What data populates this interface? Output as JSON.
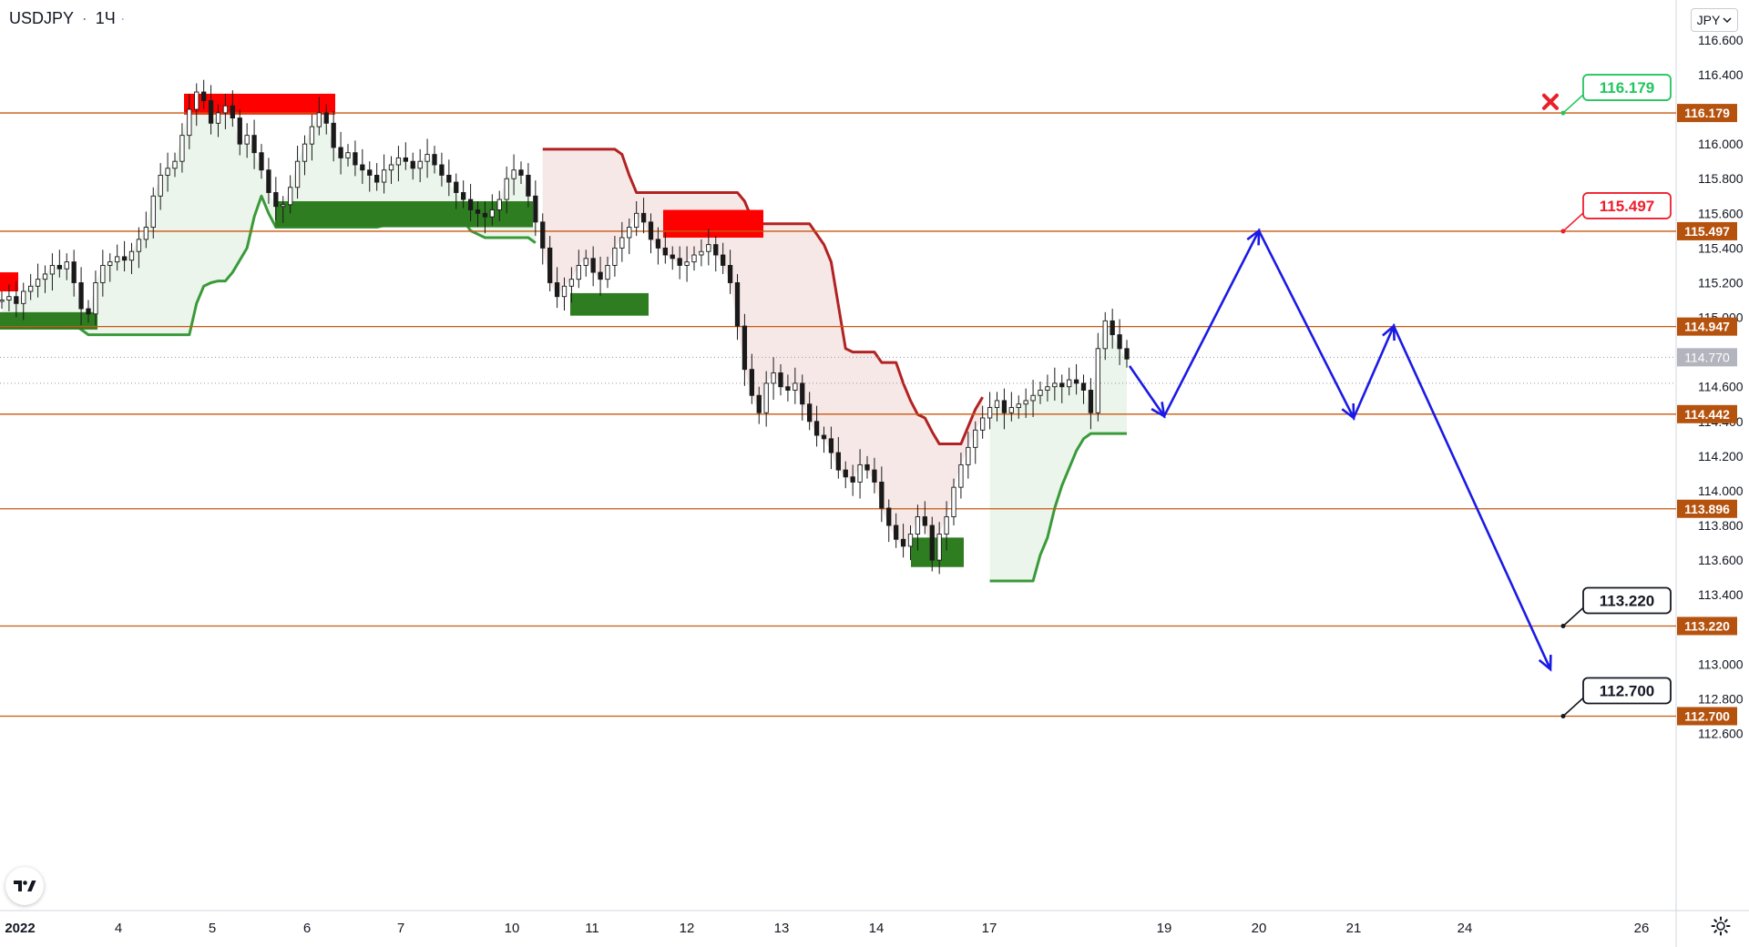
{
  "symbol": {
    "ticker": "USDJPY",
    "interval": "1Ч",
    "dot": "·"
  },
  "currency_button": {
    "label": "JPY",
    "icon": "chevron-down-icon"
  },
  "bottom_icons": {
    "logo": "tradingview-logo-icon",
    "settings": "gear-icon"
  },
  "colors": {
    "level_line": "#c8590f",
    "level_badge": "#b5520e",
    "supply_zone": "#ff0000",
    "demand_zone": "#2e7d20",
    "trail_up": "#3a9a3a",
    "trail_down": "#b22222",
    "forecast_path": "#1a1ae6",
    "stop_marker": "#e8202a",
    "candles": "#1a1a1a",
    "current_price_badge": "#b2b5be"
  },
  "chart_data": {
    "type": "candlestick",
    "instrument": "USDJPY",
    "timeframe": "1Ч",
    "x_ticks": [
      "2022",
      "4",
      "5",
      "6",
      "7",
      "10",
      "11",
      "12",
      "13",
      "14",
      "17",
      "19",
      "20",
      "21",
      "24",
      "26"
    ],
    "y_ticks": [
      "116.600",
      "116.400",
      "116.000",
      "115.800",
      "115.600",
      "115.400",
      "115.200",
      "115.000",
      "114.600",
      "114.400",
      "114.200",
      "114.000",
      "113.800",
      "113.600",
      "113.400",
      "113.000",
      "112.800",
      "112.600"
    ],
    "ylim": [
      112.45,
      116.6
    ],
    "price_levels": [
      116.179,
      115.497,
      114.947,
      114.442,
      113.896,
      113.22,
      112.7
    ],
    "current_price": "114.770",
    "callout_labels": [
      {
        "text": "116.179",
        "color": "green"
      },
      {
        "text": "115.497",
        "color": "red"
      },
      {
        "text": "113.220",
        "color": "black"
      },
      {
        "text": "112.700",
        "color": "black"
      }
    ],
    "forecast_path": [
      {
        "date": "18 late",
        "price": 114.72
      },
      {
        "date": "19",
        "price": 114.43
      },
      {
        "date": "20",
        "price": 115.5
      },
      {
        "date": "21",
        "price": 114.42
      },
      {
        "date": "21-22",
        "price": 114.95
      },
      {
        "date": "25",
        "price": 112.97
      }
    ],
    "stop_marker": {
      "date": "25",
      "price": 116.17
    },
    "supply_zones": [
      {
        "from": "3",
        "to": "3",
        "low": 115.15,
        "high": 115.26
      },
      {
        "from": "4",
        "to": "6",
        "low": 116.17,
        "high": 116.29
      },
      {
        "from": "12",
        "to": "12",
        "low": 115.46,
        "high": 115.62
      }
    ],
    "demand_zones": [
      {
        "from": "3",
        "to": "4",
        "low": 114.93,
        "high": 115.03
      },
      {
        "from": "6",
        "to": "10",
        "low": 115.52,
        "high": 115.67
      },
      {
        "from": "11",
        "to": "11",
        "low": 115.01,
        "high": 115.14
      },
      {
        "from": "14",
        "to": "17",
        "low": 113.56,
        "high": 113.73
      }
    ],
    "closes": [
      115.1,
      115.12,
      115.08,
      115.15,
      115.18,
      115.22,
      115.25,
      115.3,
      115.28,
      115.32,
      115.2,
      115.05,
      115.02,
      115.2,
      115.3,
      115.32,
      115.35,
      115.33,
      115.38,
      115.45,
      115.52,
      115.7,
      115.82,
      115.86,
      115.9,
      116.05,
      116.2,
      116.3,
      116.25,
      116.12,
      116.18,
      116.22,
      116.15,
      116.0,
      116.05,
      115.95,
      115.85,
      115.72,
      115.64,
      115.65,
      115.75,
      115.9,
      116.0,
      116.1,
      116.18,
      116.12,
      115.98,
      115.92,
      115.95,
      115.88,
      115.85,
      115.82,
      115.78,
      115.85,
      115.88,
      115.92,
      115.9,
      115.86,
      115.9,
      115.94,
      115.88,
      115.82,
      115.78,
      115.72,
      115.68,
      115.62,
      115.6,
      115.58,
      115.62,
      115.68,
      115.8,
      115.85,
      115.82,
      115.7,
      115.55,
      115.4,
      115.2,
      115.12,
      115.18,
      115.22,
      115.3,
      115.34,
      115.26,
      115.22,
      115.3,
      115.4,
      115.46,
      115.52,
      115.6,
      115.55,
      115.45,
      115.4,
      115.36,
      115.34,
      115.3,
      115.32,
      115.36,
      115.38,
      115.42,
      115.36,
      115.3,
      115.2,
      114.95,
      114.7,
      114.55,
      114.45,
      114.62,
      114.68,
      114.6,
      114.58,
      114.62,
      114.5,
      114.4,
      114.32,
      114.3,
      114.22,
      114.12,
      114.08,
      114.05,
      114.15,
      114.12,
      114.05,
      113.9,
      113.8,
      113.72,
      113.68,
      113.75,
      113.85,
      113.8,
      113.6,
      113.75,
      113.85,
      114.02,
      114.15,
      114.25,
      114.35,
      114.42,
      114.48,
      114.52,
      114.45,
      114.48,
      114.5,
      114.52,
      114.55,
      114.58,
      114.6,
      114.62,
      114.6,
      114.64,
      114.62,
      114.58,
      114.45,
      114.82,
      114.98,
      114.9,
      114.82,
      114.76
    ]
  }
}
